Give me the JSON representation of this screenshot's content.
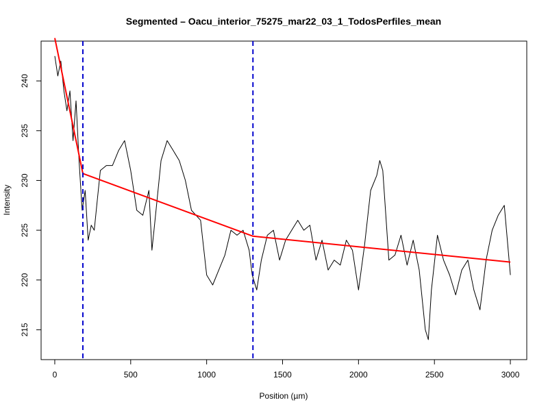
{
  "chart_data": {
    "type": "line",
    "title": "Segmented – Oacu_interior_75275_mar22_03_1_TodosPerfiles_mean",
    "xlabel": "Position (µm)",
    "ylabel": "Intensity",
    "xlim": [
      0,
      3000
    ],
    "ylim": [
      212,
      244
    ],
    "x_ticks": [
      0,
      500,
      1000,
      1500,
      2000,
      2500,
      3000
    ],
    "y_ticks": [
      215,
      220,
      225,
      230,
      235,
      240
    ],
    "grid": false,
    "legend": "none",
    "series": [
      {
        "kind": "profile",
        "color": "#000000",
        "x": [
          0,
          20,
          40,
          60,
          80,
          100,
          120,
          140,
          160,
          180,
          200,
          220,
          240,
          260,
          280,
          300,
          340,
          380,
          420,
          460,
          500,
          540,
          580,
          620,
          640,
          660,
          700,
          740,
          780,
          820,
          860,
          900,
          960,
          1000,
          1040,
          1080,
          1120,
          1160,
          1200,
          1240,
          1280,
          1300,
          1330,
          1360,
          1400,
          1440,
          1480,
          1520,
          1560,
          1600,
          1640,
          1680,
          1720,
          1760,
          1800,
          1840,
          1880,
          1920,
          1960,
          2000,
          2040,
          2080,
          2120,
          2140,
          2160,
          2200,
          2240,
          2280,
          2320,
          2360,
          2400,
          2440,
          2460,
          2480,
          2520,
          2560,
          2600,
          2640,
          2680,
          2720,
          2760,
          2800,
          2840,
          2880,
          2920,
          2960,
          3000
        ],
        "y": [
          242.5,
          240.5,
          242.0,
          239.0,
          237.0,
          239.0,
          234.0,
          238.0,
          232.0,
          227.0,
          229.0,
          224.0,
          225.5,
          225.0,
          228.0,
          231.0,
          231.5,
          231.5,
          233.0,
          234.0,
          231.0,
          227.0,
          226.5,
          229.0,
          223.0,
          226.0,
          232.0,
          234.0,
          233.0,
          232.0,
          230.0,
          227.0,
          226.0,
          220.5,
          219.5,
          221.0,
          222.5,
          225.0,
          224.5,
          225.0,
          223.0,
          220.5,
          219.0,
          222.0,
          224.5,
          225.0,
          222.0,
          224.0,
          225.0,
          226.0,
          225.0,
          225.5,
          222.0,
          224.0,
          221.0,
          222.0,
          221.5,
          224.0,
          223.0,
          219.0,
          223.5,
          229.0,
          230.5,
          232.0,
          231.0,
          222.0,
          222.5,
          224.5,
          221.5,
          224.0,
          221.0,
          215.0,
          214.0,
          219.0,
          224.5,
          222.0,
          220.5,
          218.5,
          221.0,
          222.0,
          219.0,
          217.0,
          222.0,
          225.0,
          226.5,
          227.5,
          220.5
        ]
      },
      {
        "kind": "segmented-fit",
        "color": "#ff0000",
        "x": [
          0,
          185,
          1305,
          3000
        ],
        "y": [
          244.3,
          230.7,
          224.4,
          221.8
        ]
      }
    ],
    "breakpoints": {
      "color": "#0000cd",
      "x": [
        185,
        1305
      ]
    }
  }
}
